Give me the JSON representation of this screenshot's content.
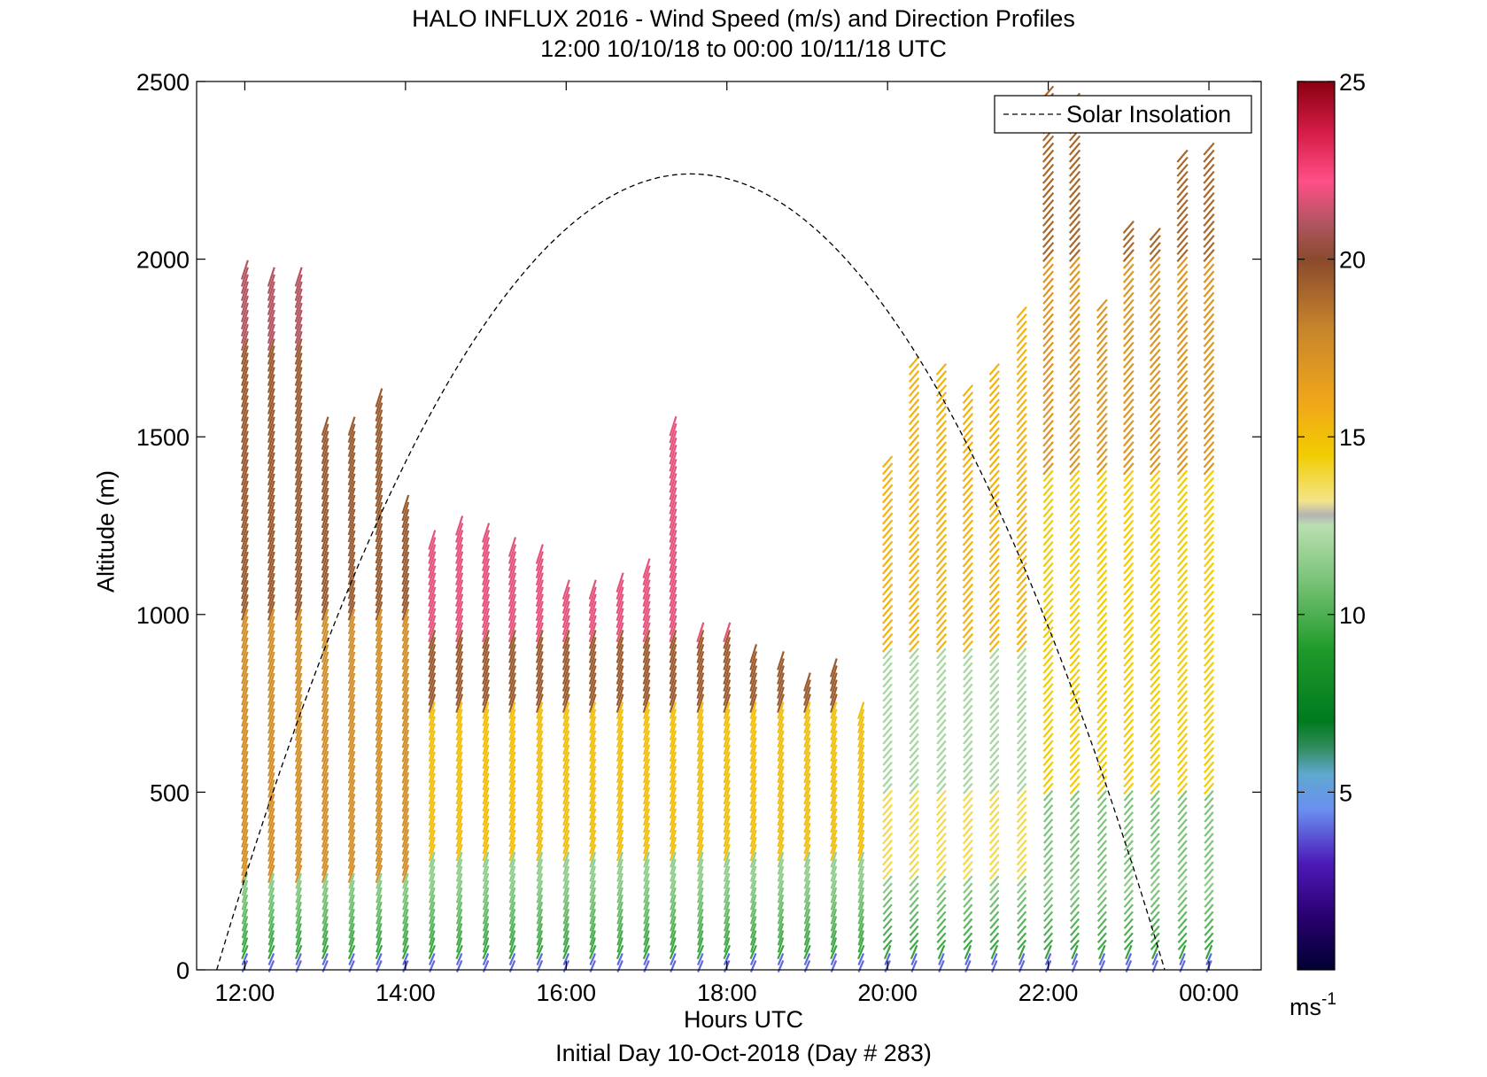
{
  "chart_data": {
    "type": "wind-barb profile",
    "title": "HALO INFLUX 2016 - Wind Speed (m/s) and Direction Profiles",
    "subtitle": "12:00 10/10/18 to 00:00 10/11/18  UTC",
    "xlabel": "Hours UTC",
    "xlabel2": "Initial Day 10-Oct-2018 (Day # 283)",
    "ylabel": "Altitude (m)",
    "xlim_hours": [
      11.4,
      24.65
    ],
    "ylim": [
      0,
      2500
    ],
    "x_ticks": [
      {
        "hour": 12,
        "label": "12:00"
      },
      {
        "hour": 14,
        "label": "14:00"
      },
      {
        "hour": 16,
        "label": "16:00"
      },
      {
        "hour": 18,
        "label": "18:00"
      },
      {
        "hour": 20,
        "label": "20:00"
      },
      {
        "hour": 22,
        "label": "22:00"
      },
      {
        "hour": 24,
        "label": "00:00"
      }
    ],
    "y_ticks": [
      0,
      500,
      1000,
      1500,
      2000,
      2500
    ],
    "legend": {
      "label": "Solar Insolation",
      "position": "top-right",
      "style": "dashed black"
    },
    "colorbar": {
      "min": 0,
      "max": 25,
      "ticks": [
        5,
        10,
        15,
        20,
        25
      ],
      "unit_label": "ms",
      "unit_exp": "-1"
    },
    "solar_insolation": {
      "start_hour": 11.65,
      "peak_hour": 17.55,
      "end_hour": 23.45,
      "peak_altitude": 2240
    },
    "profile_times": [
      12.0,
      12.33,
      12.67,
      13.0,
      13.33,
      13.67,
      14.0,
      14.33,
      14.67,
      15.0,
      15.33,
      15.67,
      16.0,
      16.33,
      16.67,
      17.0,
      17.33,
      17.67,
      18.0,
      18.33,
      18.67,
      19.0,
      19.33,
      19.67,
      20.0,
      20.33,
      20.67,
      21.0,
      21.33,
      21.67,
      22.0,
      22.33,
      22.67,
      23.0,
      23.33,
      23.67,
      24.0
    ],
    "profile_tops_m": [
      1980,
      1960,
      1960,
      1530,
      1530,
      1620,
      1320,
      1210,
      1250,
      1240,
      1200,
      1180,
      1080,
      1070,
      1090,
      1130,
      1540,
      950,
      960,
      900,
      880,
      820,
      860,
      740,
      1430,
      1720,
      1700,
      1640,
      1700,
      1860,
      2480,
      2460,
      1880,
      2090,
      2070,
      2290,
      2310
    ],
    "colorbar_stops": [
      {
        "v": 0,
        "c": "#000033"
      },
      {
        "v": 1.5,
        "c": "#2a0070"
      },
      {
        "v": 3,
        "c": "#4b1ab8"
      },
      {
        "v": 4.5,
        "c": "#6a8ff0"
      },
      {
        "v": 5.5,
        "c": "#5fa8d0"
      },
      {
        "v": 6.3,
        "c": "#2e8b57"
      },
      {
        "v": 7,
        "c": "#007a1e"
      },
      {
        "v": 9,
        "c": "#1f9a2a"
      },
      {
        "v": 11,
        "c": "#7cc47a"
      },
      {
        "v": 12.5,
        "c": "#b9dfb0"
      },
      {
        "v": 12.8,
        "c": "#b4b4b4"
      },
      {
        "v": 13.2,
        "c": "#f3e58a"
      },
      {
        "v": 14.5,
        "c": "#f2cc00"
      },
      {
        "v": 16,
        "c": "#f0a61a"
      },
      {
        "v": 18,
        "c": "#c8862c"
      },
      {
        "v": 20,
        "c": "#8a4a2c"
      },
      {
        "v": 21,
        "c": "#b05561"
      },
      {
        "v": 22.2,
        "c": "#ff4f87"
      },
      {
        "v": 23.5,
        "c": "#d81e4a"
      },
      {
        "v": 25,
        "c": "#8a0010"
      }
    ]
  }
}
